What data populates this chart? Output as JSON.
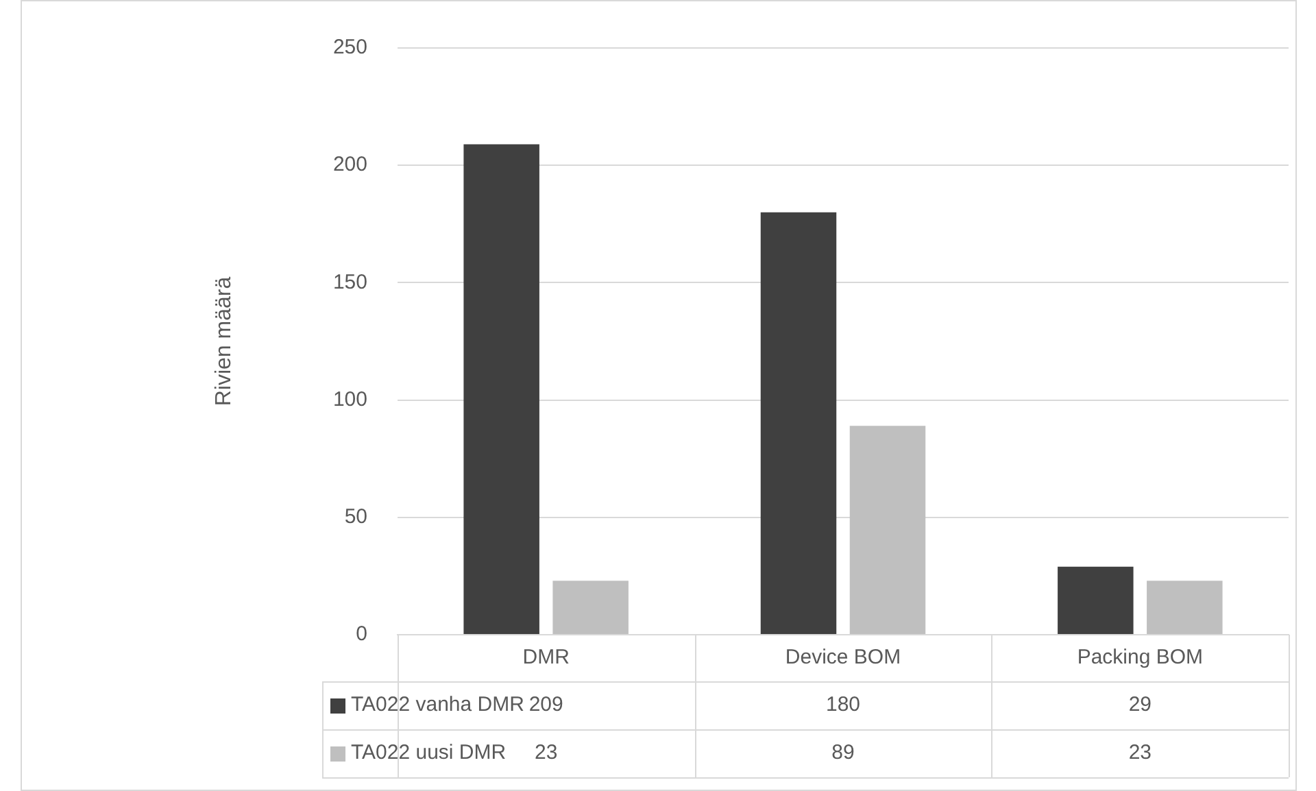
{
  "chart_data": {
    "type": "bar",
    "ylabel": "Rivien määrä",
    "categories": [
      "DMR",
      "Device BOM",
      "Packing BOM"
    ],
    "series": [
      {
        "name": "TA022 vanha DMR",
        "color": "#404040",
        "values": [
          209,
          180,
          29
        ]
      },
      {
        "name": "TA022 uusi DMR",
        "color": "#bfbfbf",
        "values": [
          23,
          89,
          23
        ]
      }
    ],
    "ylim": [
      0,
      250
    ],
    "yticks": [
      0,
      50,
      100,
      150,
      200,
      250
    ],
    "grid": "y",
    "legend": "bottom",
    "data_labels": true
  }
}
